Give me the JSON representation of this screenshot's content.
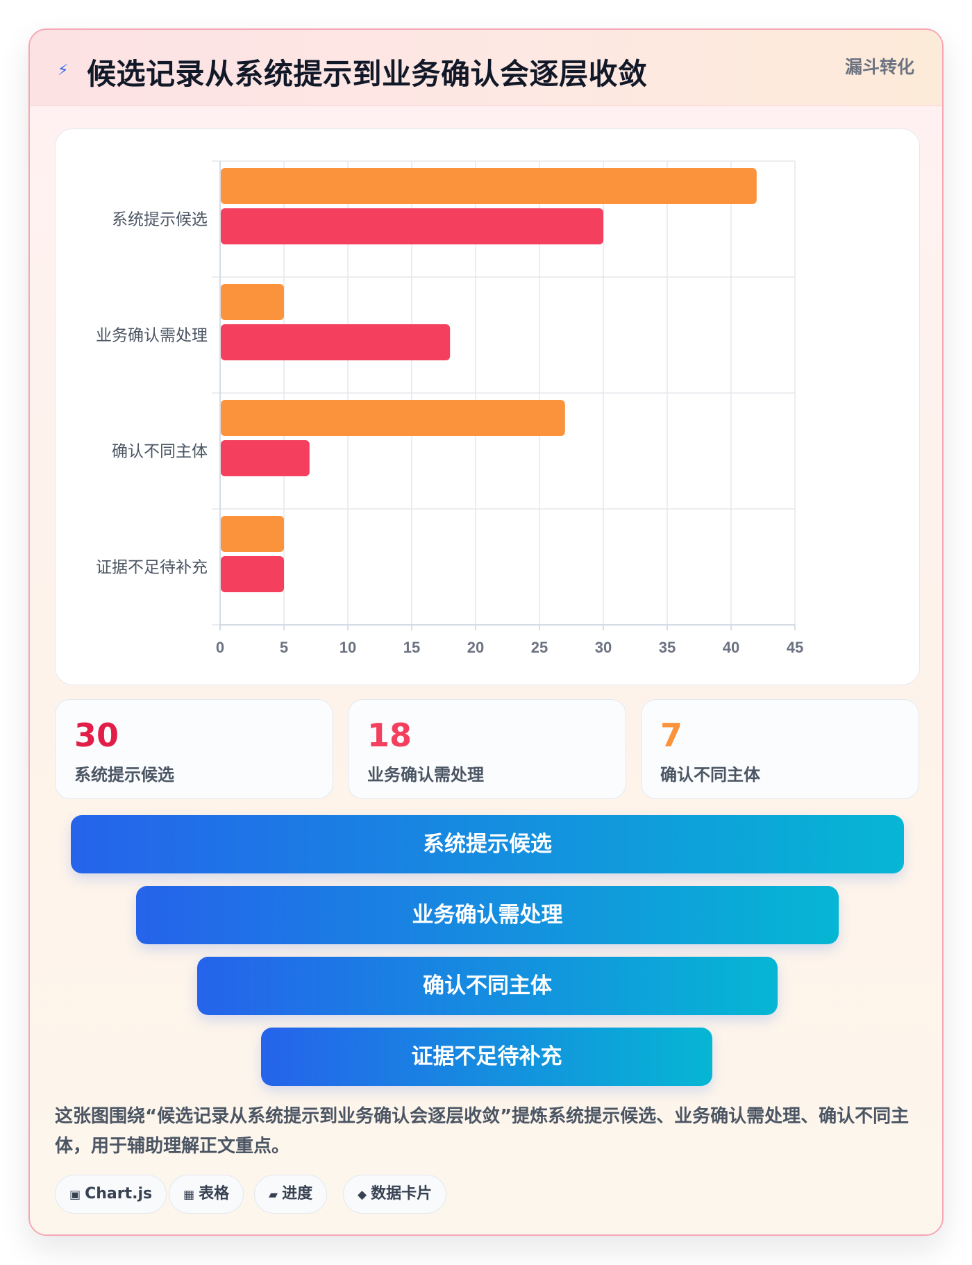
{
  "header": {
    "icon": "lightning-icon",
    "title": "候选记录从系统提示到业务确认会逐层收敛",
    "tag": "漏斗转化"
  },
  "chart_data": {
    "type": "bar",
    "orientation": "horizontal",
    "categories": [
      "系统提示候选",
      "业务确认需处理",
      "确认不同主体",
      "证据不足待补充"
    ],
    "series": [
      {
        "values": [
          42,
          5,
          27,
          5
        ],
        "color": "#fb923c"
      },
      {
        "values": [
          30,
          18,
          7,
          5
        ],
        "color": "#f43f5e"
      }
    ],
    "xlim": [
      0,
      45
    ],
    "x_ticks": [
      0,
      5,
      10,
      15,
      20,
      25,
      30,
      35,
      40,
      45
    ],
    "grid": true,
    "legend": "none"
  },
  "stats": [
    {
      "value": "30",
      "label": "系统提示候选",
      "color": "#e11d48"
    },
    {
      "value": "18",
      "label": "业务确认需处理",
      "color": "#f43f5e"
    },
    {
      "value": "7",
      "label": "确认不同主体",
      "color": "#fb923c"
    }
  ],
  "funnel": [
    "系统提示候选",
    "业务确认需处理",
    "确认不同主体",
    "证据不足待补充"
  ],
  "summary": "这张图围绕“候选记录从系统提示到业务确认会逐层收敛”提炼系统提示候选、业务确认需处理、确认不同主体，用于辅助理解正文重点。",
  "pills": [
    {
      "icon": "▣",
      "icon_name": "chart-icon",
      "label": "Chart.js"
    },
    {
      "icon": "▦",
      "icon_name": "table-icon",
      "label": "表格"
    },
    {
      "icon": "▰",
      "icon_name": "progress-icon",
      "label": "进度"
    },
    {
      "icon": "◆",
      "icon_name": "card-icon",
      "label": "数据卡片"
    }
  ]
}
